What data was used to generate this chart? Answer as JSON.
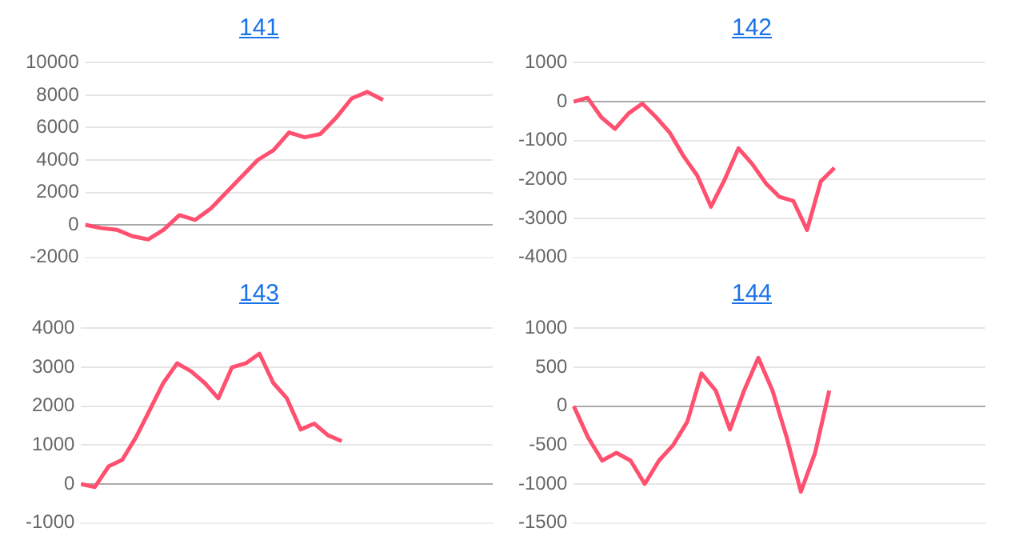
{
  "chart_data": [
    {
      "type": "line",
      "title": "141",
      "categories": [
        null,
        null,
        null,
        null,
        null,
        null,
        null,
        null,
        null,
        null,
        null,
        null,
        null,
        null,
        null,
        null,
        null,
        null,
        null,
        null,
        null,
        null,
        null,
        null,
        null,
        null,
        null
      ],
      "series": [
        {
          "color": "#ff5070",
          "values": [
            0,
            -200,
            -300,
            -700,
            -900,
            -300,
            600,
            300,
            1000,
            2000,
            3000,
            4000,
            4600,
            5700,
            5400,
            5600,
            6600,
            7800,
            8200,
            7700,
            null,
            null,
            null,
            null,
            null,
            null,
            null
          ]
        }
      ],
      "ylim": [
        -2000,
        10000
      ],
      "yticks": [
        -2000,
        0,
        2000,
        4000,
        6000,
        8000,
        10000
      ],
      "grid": "y",
      "marker": "none",
      "line_style": "solid",
      "legend": false
    },
    {
      "type": "line",
      "title": "142",
      "categories": [
        null,
        null,
        null,
        null,
        null,
        null,
        null,
        null,
        null,
        null,
        null,
        null,
        null,
        null,
        null,
        null,
        null,
        null,
        null,
        null,
        null,
        null,
        null,
        null,
        null,
        null,
        null,
        null,
        null,
        null,
        null
      ],
      "series": [
        {
          "color": "#ff5070",
          "values": [
            0,
            100,
            -400,
            -700,
            -300,
            -50,
            -400,
            -800,
            -1400,
            -1900,
            -2700,
            -2000,
            -1200,
            -1600,
            -2100,
            -2450,
            -2550,
            -3300,
            -2050,
            -1700,
            null,
            null,
            null,
            null,
            null,
            null,
            null,
            null,
            null,
            null,
            null
          ]
        }
      ],
      "ylim": [
        -4000,
        1000
      ],
      "yticks": [
        -4000,
        -3000,
        -2000,
        -1000,
        0,
        1000
      ],
      "grid": "y",
      "marker": "none",
      "line_style": "solid",
      "legend": false
    },
    {
      "type": "line",
      "title": "143",
      "categories": [
        null,
        null,
        null,
        null,
        null,
        null,
        null,
        null,
        null,
        null,
        null,
        null,
        null,
        null,
        null,
        null,
        null,
        null,
        null,
        null,
        null,
        null,
        null,
        null,
        null,
        null,
        null,
        null,
        null,
        null,
        null
      ],
      "series": [
        {
          "color": "#ff5070",
          "values": [
            0,
            -80,
            450,
            620,
            1200,
            1900,
            2600,
            3100,
            2900,
            2600,
            2200,
            3000,
            3100,
            3350,
            2600,
            2200,
            1400,
            1550,
            1250,
            1100,
            null,
            null,
            null,
            null,
            null,
            null,
            null,
            null,
            null,
            null,
            null
          ]
        }
      ],
      "ylim": [
        -1000,
        4000
      ],
      "yticks": [
        -1000,
        0,
        1000,
        2000,
        3000,
        4000
      ],
      "grid": "y",
      "marker": "none",
      "line_style": "solid",
      "legend": false
    },
    {
      "type": "line",
      "title": "144",
      "categories": [
        null,
        null,
        null,
        null,
        null,
        null,
        null,
        null,
        null,
        null,
        null,
        null,
        null,
        null,
        null,
        null,
        null,
        null,
        null,
        null,
        null,
        null,
        null,
        null,
        null,
        null,
        null,
        null,
        null,
        null
      ],
      "series": [
        {
          "color": "#ff5070",
          "values": [
            0,
            -400,
            -700,
            -600,
            -700,
            -1000,
            -700,
            -500,
            -200,
            420,
            200,
            -300,
            200,
            620,
            200,
            -400,
            -1100,
            -600,
            200,
            null,
            null,
            null,
            null,
            null,
            null,
            null,
            null,
            null,
            null,
            null
          ]
        }
      ],
      "ylim": [
        -1500,
        1000
      ],
      "yticks": [
        -1500,
        -1000,
        -500,
        0,
        500,
        1000
      ],
      "grid": "y",
      "marker": "none",
      "line_style": "solid",
      "legend": false
    }
  ]
}
